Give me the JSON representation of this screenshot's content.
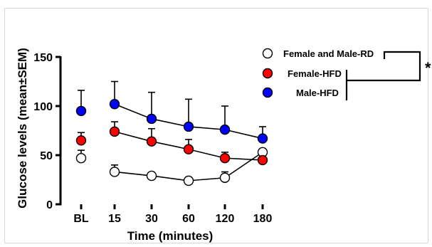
{
  "chart_data": {
    "type": "line",
    "xlabel": "Time (minutes)",
    "ylabel": "Glucose levels (mean±SEM)",
    "categories": [
      "BL",
      "15",
      "30",
      "60",
      "120",
      "180"
    ],
    "yticks": [
      0,
      50,
      100,
      150
    ],
    "ylim": [
      0,
      150
    ],
    "grid": false,
    "legend_position": "top-right",
    "significance_label": "*",
    "series": [
      {
        "name": "Female and Male-RD",
        "marker_fill": "#ffffff",
        "values": [
          47,
          33,
          29,
          24,
          27,
          53
        ],
        "err": [
          8,
          7,
          0,
          0,
          6,
          0
        ]
      },
      {
        "name": "Female-HFD",
        "marker_fill": "#ff0000",
        "values": [
          65,
          74,
          64,
          56,
          47,
          45
        ],
        "err": [
          8,
          10,
          13,
          10,
          6,
          0
        ]
      },
      {
        "name": "Male-HFD",
        "marker_fill": "#0000ff",
        "values": [
          95,
          102,
          87,
          79,
          76,
          67
        ],
        "err": [
          21,
          23,
          27,
          28,
          24,
          12
        ]
      }
    ]
  }
}
